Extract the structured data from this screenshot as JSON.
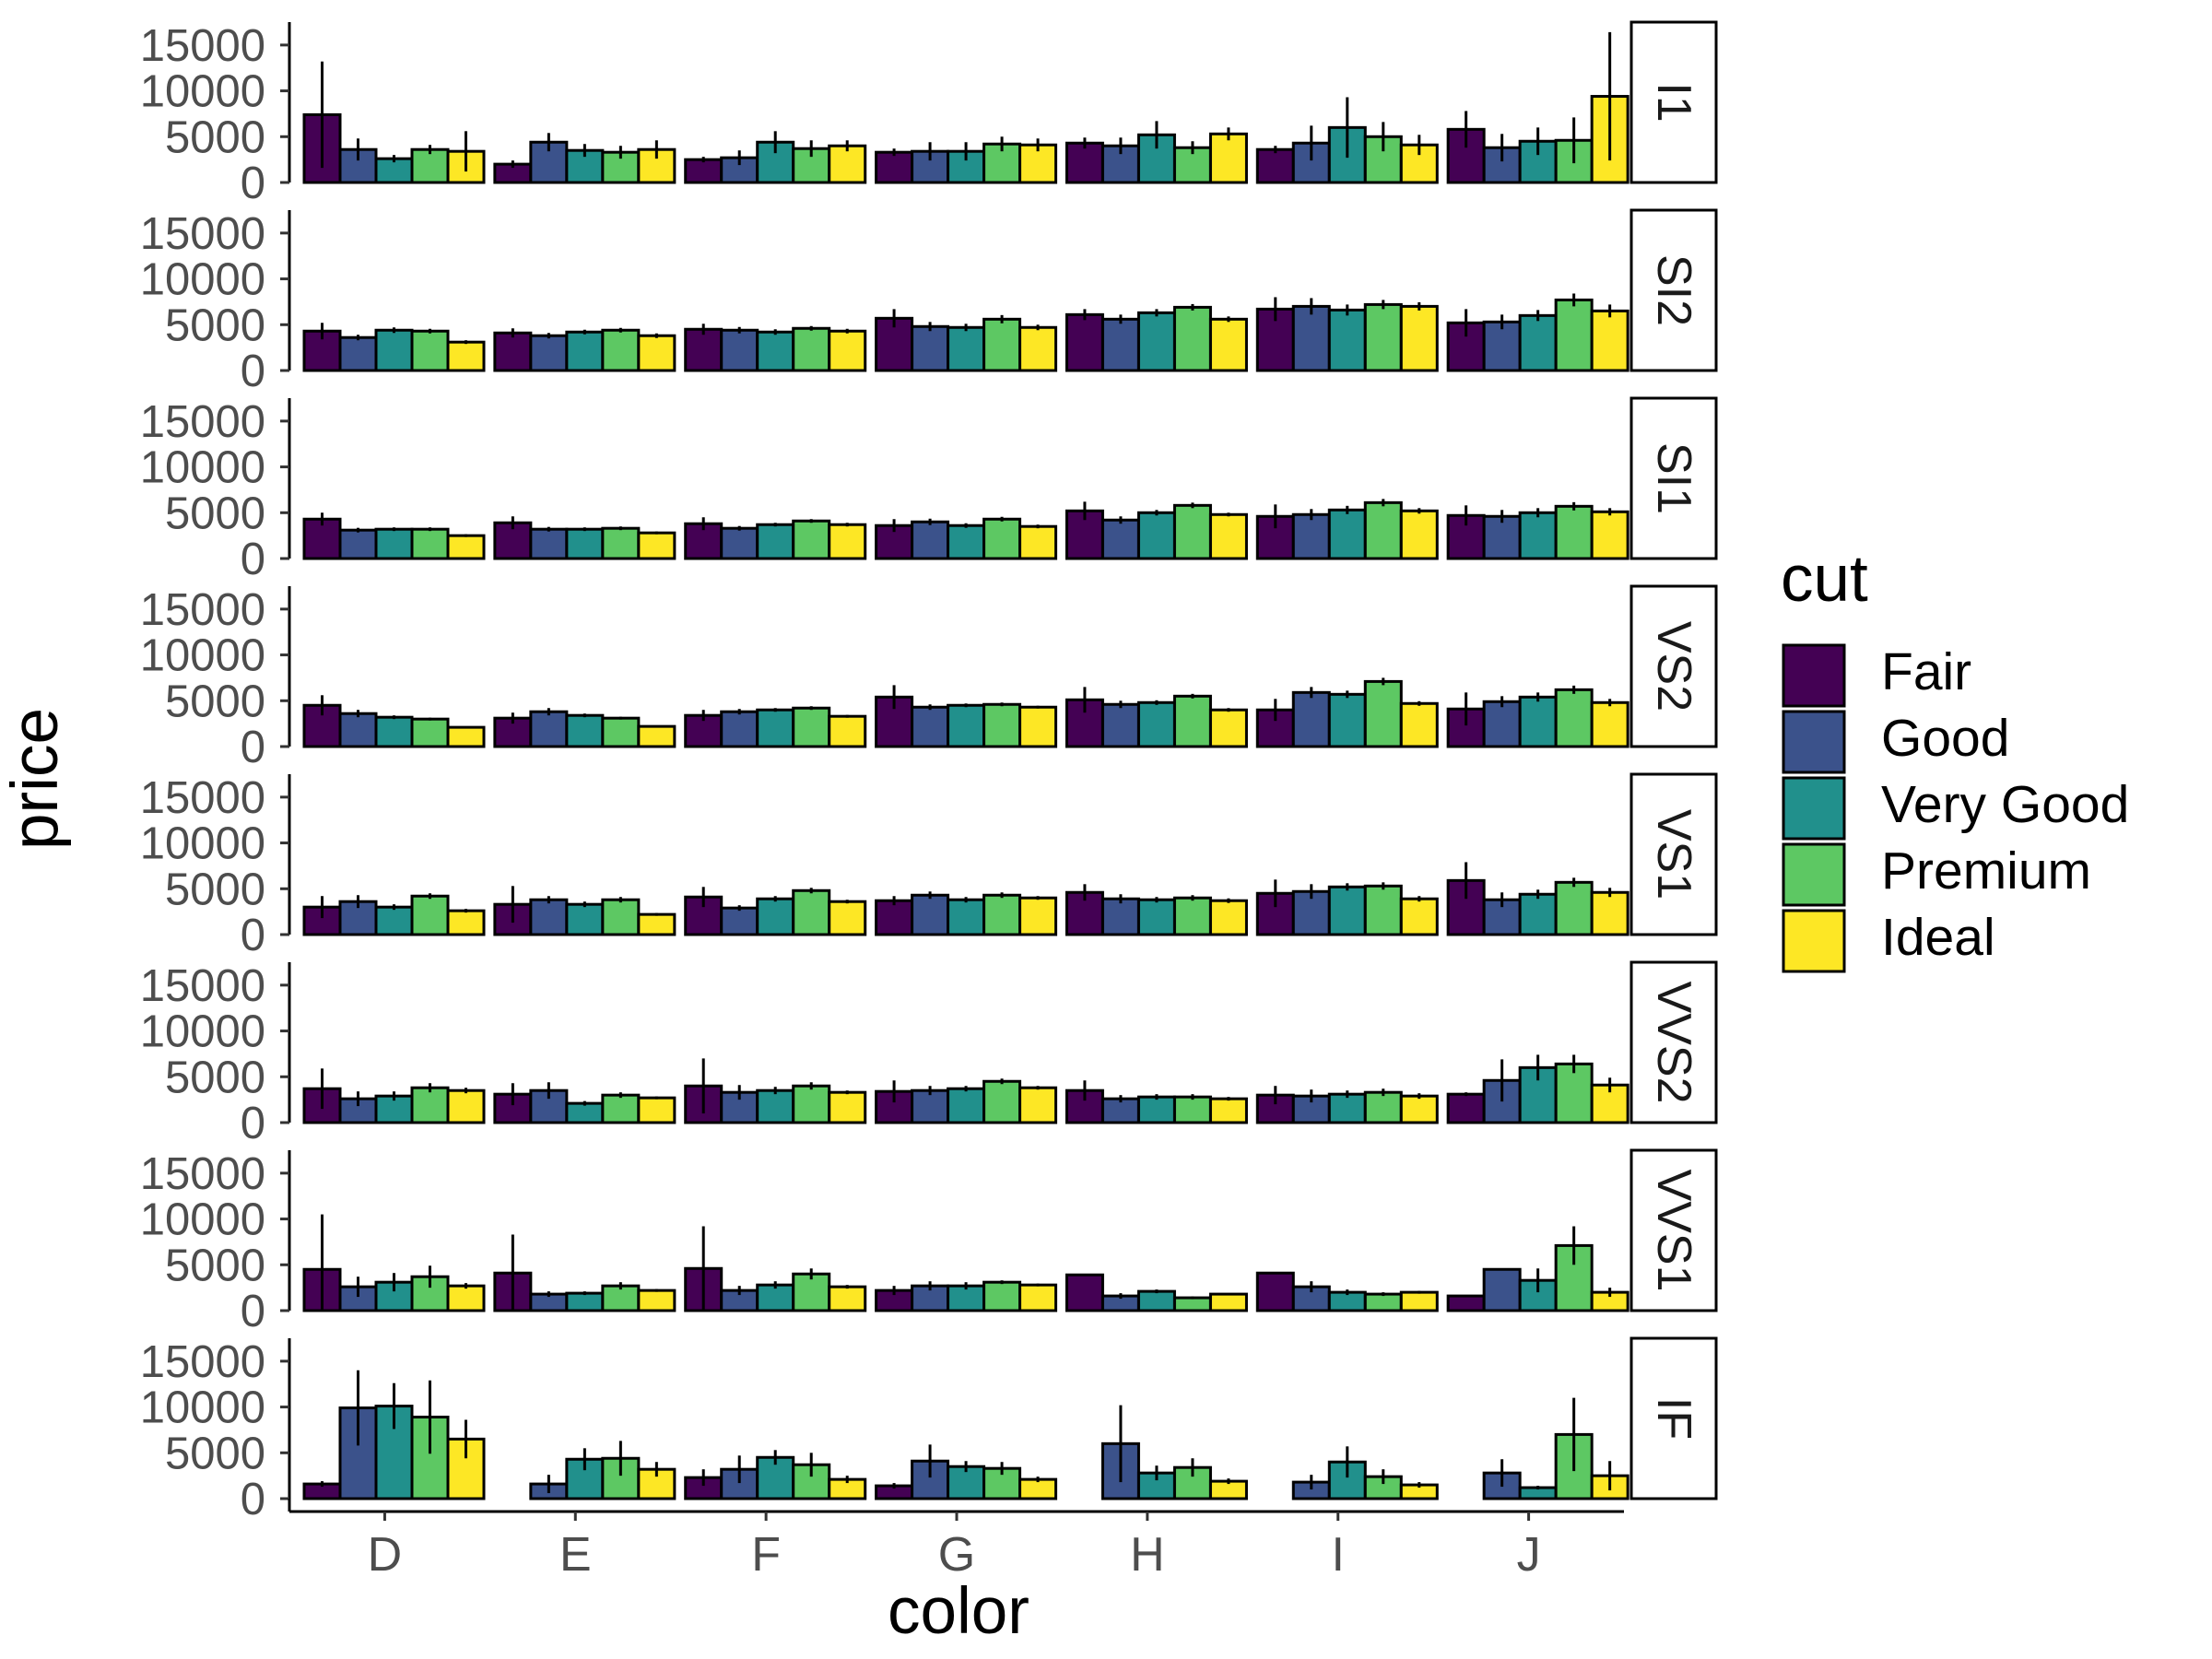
{
  "chart_data": {
    "type": "bar",
    "xlabel": "color",
    "ylabel": "price",
    "categories": [
      "D",
      "E",
      "F",
      "G",
      "H",
      "I",
      "J"
    ],
    "facet_variable": "clarity",
    "facets": [
      "I1",
      "SI2",
      "SI1",
      "VS2",
      "VS1",
      "VVS2",
      "VVS1",
      "IF"
    ],
    "ylim": [
      0,
      17500
    ],
    "yticks": [
      0,
      5000,
      10000,
      15000
    ],
    "ytick_labels": [
      "0",
      "5000",
      "10000",
      "15000"
    ],
    "grid": false,
    "error_bars": true,
    "legend": {
      "title": "cut",
      "position": "right",
      "entries": [
        "Fair",
        "Good",
        "Very Good",
        "Premium",
        "Ideal"
      ]
    },
    "series_colors": {
      "Fair": "#440154",
      "Good": "#3B528B",
      "Very Good": "#21908C",
      "Premium": "#5DC863",
      "Ideal": "#FDE725"
    },
    "panels": [
      {
        "facet": "I1",
        "values": [
          [
            7400,
            3600,
            2600,
            3600,
            3400
          ],
          [
            2000,
            4400,
            3500,
            3300,
            3600
          ],
          [
            2500,
            2700,
            4400,
            3700,
            4000
          ],
          [
            3300,
            3400,
            3400,
            4200,
            4100
          ],
          [
            4300,
            4000,
            5200,
            3800,
            5300
          ],
          [
            3600,
            4300,
            6000,
            5000,
            4100
          ],
          [
            5800,
            3800,
            4500,
            4600,
            9400
          ]
        ],
        "errors": [
          [
            5800,
            1200,
            400,
            500,
            2200
          ],
          [
            400,
            1000,
            700,
            700,
            1000
          ],
          [
            300,
            800,
            1200,
            900,
            600
          ],
          [
            400,
            1000,
            1000,
            800,
            700
          ],
          [
            600,
            900,
            1500,
            700,
            700
          ],
          [
            400,
            1900,
            3300,
            1600,
            1100
          ],
          [
            2000,
            1500,
            1500,
            2500,
            7000
          ]
        ]
      },
      {
        "facet": "SI2",
        "values": [
          [
            4300,
            3600,
            4400,
            4300,
            3100
          ],
          [
            4100,
            3800,
            4200,
            4400,
            3800
          ],
          [
            4500,
            4400,
            4200,
            4600,
            4300
          ],
          [
            5700,
            4800,
            4700,
            5600,
            4700
          ],
          [
            6100,
            5600,
            6300,
            6900,
            5600
          ],
          [
            6700,
            7000,
            6600,
            7200,
            7000
          ],
          [
            5200,
            5300,
            6000,
            7700,
            6500
          ]
        ],
        "errors": [
          [
            900,
            300,
            300,
            250,
            200
          ],
          [
            500,
            300,
            250,
            250,
            250
          ],
          [
            600,
            350,
            300,
            250,
            250
          ],
          [
            1000,
            500,
            400,
            450,
            300
          ],
          [
            600,
            500,
            400,
            350,
            300
          ],
          [
            1300,
            900,
            600,
            500,
            450
          ],
          [
            1500,
            800,
            600,
            700,
            700
          ]
        ]
      },
      {
        "facet": "SI1",
        "values": [
          [
            4300,
            3100,
            3200,
            3200,
            2500
          ],
          [
            3900,
            3200,
            3200,
            3300,
            2800
          ],
          [
            3800,
            3300,
            3700,
            4100,
            3700
          ],
          [
            3600,
            4000,
            3600,
            4300,
            3500
          ],
          [
            5200,
            4200,
            5000,
            5800,
            4800
          ],
          [
            4600,
            4800,
            5300,
            6100,
            5200
          ],
          [
            4700,
            4600,
            5000,
            5700,
            5100
          ]
        ],
        "errors": [
          [
            700,
            250,
            200,
            200,
            150
          ],
          [
            700,
            250,
            200,
            200,
            150
          ],
          [
            700,
            250,
            200,
            200,
            200
          ],
          [
            700,
            350,
            250,
            250,
            200
          ],
          [
            1000,
            400,
            300,
            300,
            200
          ],
          [
            1300,
            600,
            450,
            400,
            300
          ],
          [
            1100,
            700,
            500,
            450,
            400
          ]
        ]
      },
      {
        "facet": "VS2",
        "values": [
          [
            4500,
            3600,
            3200,
            3000,
            2100
          ],
          [
            3100,
            3800,
            3400,
            3100,
            2200
          ],
          [
            3400,
            3800,
            4000,
            4200,
            3300
          ],
          [
            5400,
            4300,
            4500,
            4600,
            4300
          ],
          [
            5100,
            4600,
            4800,
            5500,
            4000
          ],
          [
            4000,
            5900,
            5700,
            7100,
            4700
          ],
          [
            4100,
            4900,
            5400,
            6200,
            4800
          ]
        ],
        "errors": [
          [
            1100,
            400,
            200,
            150,
            100
          ],
          [
            600,
            400,
            200,
            150,
            100
          ],
          [
            600,
            300,
            200,
            200,
            150
          ],
          [
            1300,
            300,
            200,
            200,
            150
          ],
          [
            1400,
            400,
            250,
            250,
            200
          ],
          [
            1200,
            600,
            400,
            400,
            250
          ],
          [
            1800,
            600,
            500,
            450,
            400
          ]
        ]
      },
      {
        "facet": "VS1",
        "values": [
          [
            3000,
            3600,
            3000,
            4200,
            2600
          ],
          [
            3300,
            3800,
            3300,
            3800,
            2200
          ],
          [
            4100,
            2900,
            3900,
            4800,
            3600
          ],
          [
            3700,
            4300,
            3800,
            4300,
            4000
          ],
          [
            4600,
            3900,
            3800,
            4000,
            3700
          ],
          [
            4500,
            4700,
            5200,
            5300,
            3900
          ],
          [
            5900,
            3800,
            4400,
            5700,
            4600
          ]
        ],
        "errors": [
          [
            1200,
            700,
            300,
            300,
            200
          ],
          [
            2000,
            400,
            300,
            300,
            150
          ],
          [
            1100,
            300,
            300,
            300,
            200
          ],
          [
            500,
            400,
            300,
            300,
            200
          ],
          [
            900,
            500,
            300,
            300,
            250
          ],
          [
            1500,
            800,
            400,
            400,
            300
          ],
          [
            2000,
            800,
            500,
            500,
            500
          ]
        ]
      },
      {
        "facet": "VVS2",
        "values": [
          [
            3700,
            2600,
            2900,
            3800,
            3500
          ],
          [
            3100,
            3500,
            2100,
            3000,
            2700
          ],
          [
            4000,
            3300,
            3500,
            4000,
            3300
          ],
          [
            3400,
            3500,
            3700,
            4500,
            3800
          ],
          [
            3500,
            2600,
            2800,
            2800,
            2600
          ],
          [
            3000,
            2900,
            3100,
            3300,
            2900
          ],
          [
            3100,
            4600,
            6000,
            6400,
            4100
          ]
        ],
        "errors": [
          [
            2200,
            800,
            500,
            500,
            300
          ],
          [
            1200,
            900,
            250,
            300,
            150
          ],
          [
            3000,
            800,
            400,
            400,
            200
          ],
          [
            1200,
            500,
            300,
            300,
            200
          ],
          [
            1100,
            400,
            300,
            300,
            200
          ],
          [
            1000,
            700,
            400,
            400,
            300
          ],
          [
            200,
            2300,
            1400,
            1000,
            800
          ]
        ]
      },
      {
        "facet": "VVS1",
        "values": [
          [
            4500,
            2600,
            3100,
            3700,
            2700
          ],
          [
            4100,
            1800,
            1900,
            2700,
            2200
          ],
          [
            4600,
            2200,
            2800,
            4000,
            2600
          ],
          [
            2200,
            2700,
            2700,
            3100,
            2800
          ],
          [
            3900,
            1600,
            2100,
            1400,
            1800
          ],
          [
            4100,
            2600,
            2000,
            1800,
            2000
          ],
          [
            1600,
            4500,
            3300,
            7100,
            2000
          ]
        ],
        "errors": [
          [
            6000,
            1100,
            1000,
            1200,
            300
          ],
          [
            4200,
            300,
            200,
            400,
            150
          ],
          [
            4600,
            500,
            400,
            600,
            200
          ],
          [
            500,
            500,
            400,
            200,
            150
          ],
          [
            100,
            300,
            200,
            150,
            100
          ],
          [
            100,
            600,
            300,
            200,
            150
          ],
          [
            0,
            0,
            1300,
            2100,
            500
          ]
        ]
      },
      {
        "facet": "IF",
        "values": [
          [
            1600,
            9900,
            10100,
            8900,
            6500
          ],
          [
            0,
            1600,
            4300,
            4400,
            3200
          ],
          [
            2300,
            3200,
            4500,
            3700,
            2100
          ],
          [
            1400,
            4100,
            3500,
            3300,
            2100
          ],
          [
            0,
            6000,
            2800,
            3400,
            1900
          ],
          [
            0,
            1800,
            4000,
            2400,
            1500
          ],
          [
            0,
            2800,
            1200,
            7000,
            2500
          ]
        ],
        "errors": [
          [
            300,
            4100,
            2500,
            4000,
            2100
          ],
          [
            0,
            1000,
            1200,
            1900,
            800
          ],
          [
            900,
            1500,
            800,
            1300,
            400
          ],
          [
            300,
            1800,
            600,
            700,
            300
          ],
          [
            0,
            4200,
            800,
            1000,
            300
          ],
          [
            0,
            800,
            1700,
            800,
            300
          ],
          [
            0,
            1500,
            200,
            4000,
            1600
          ]
        ]
      }
    ]
  }
}
